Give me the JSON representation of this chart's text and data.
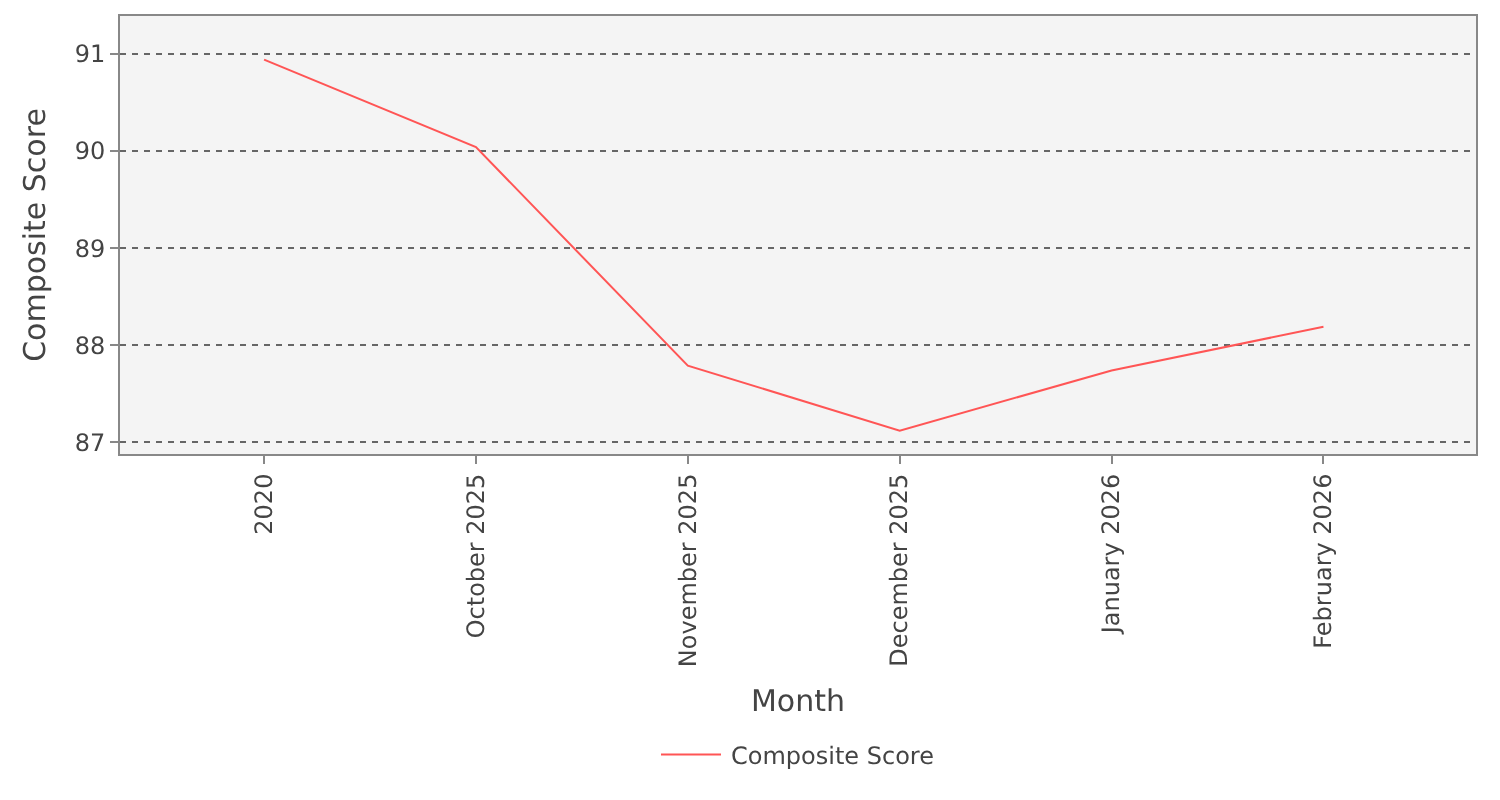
{
  "chart_data": {
    "type": "line",
    "xlabel": "Month",
    "ylabel": "Composite Score",
    "categories": [
      "2020",
      "October 2025",
      "November 2025",
      "December 2025",
      "January 2026",
      "February 2026"
    ],
    "series": [
      {
        "name": "Composite Score",
        "color": "#ff5555",
        "values": [
          90.94,
          90.04,
          87.79,
          87.12,
          87.74,
          88.19
        ]
      }
    ],
    "ylim": [
      86.88,
      91.39
    ],
    "yticks": [
      87,
      88,
      89,
      90,
      91
    ],
    "grid": "y",
    "legend": "bottom",
    "marker": "none",
    "line_style": "solid"
  }
}
